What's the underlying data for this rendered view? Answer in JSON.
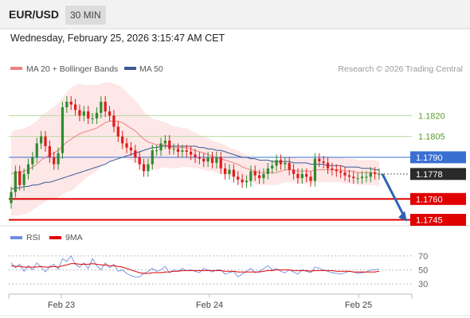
{
  "header": {
    "pair": "EUR/USD",
    "timeframe": "30 MIN",
    "datetime": "Wednesday, February 25, 2026 3:15:47 AM CET"
  },
  "legend": {
    "ma20_bb": "MA 20 + Bollinger Bands",
    "ma50": "MA 50",
    "credit": "Research © 2026 Trading Central"
  },
  "rsi_legend": {
    "rsi": "RSI",
    "ma9": "9MA"
  },
  "colors": {
    "green_level": "#b7db9a",
    "green_label": "#5a9e2f",
    "blue_level": "#3a6fd2",
    "red_level": "#e00000",
    "candle_up": "#2e8b2e",
    "candle_down": "#e11b1b",
    "ma20": "#f08080",
    "ma50": "#3a5a94",
    "band_fill": "#fde3e3",
    "rsi": "#6e8fe0",
    "rsi_ma": "#e00000"
  },
  "chart_data": {
    "type": "candlestick",
    "symbol": "EUR/USD",
    "interval": "30 MIN",
    "x_ticks": [
      "Feb 23",
      "Feb 24",
      "Feb 25"
    ],
    "levels": [
      {
        "price": 1.182,
        "label": "1.1820",
        "kind": "resistance",
        "color": "green"
      },
      {
        "price": 1.1805,
        "label": "1.1805",
        "kind": "resistance",
        "color": "green"
      },
      {
        "price": 1.179,
        "label": "1.1790",
        "kind": "pivot",
        "color": "blue"
      },
      {
        "price": 1.176,
        "label": "1.1760",
        "kind": "support",
        "color": "red"
      },
      {
        "price": 1.1745,
        "label": "1.1745",
        "kind": "support",
        "color": "red"
      }
    ],
    "current_price": {
      "price": 1.1778,
      "label": "1.1778"
    },
    "projection": {
      "from": 1.1778,
      "to": 1.1745,
      "direction": "down"
    },
    "close_series": [
      1.1765,
      1.178,
      1.177,
      1.1778,
      1.1785,
      1.179,
      1.18,
      1.1805,
      1.1798,
      1.179,
      1.1785,
      1.1793,
      1.1826,
      1.183,
      1.1828,
      1.1824,
      1.182,
      1.1823,
      1.1818,
      1.1818,
      1.1822,
      1.183,
      1.1823,
      1.182,
      1.1812,
      1.1805,
      1.18,
      1.1797,
      1.1795,
      1.179,
      1.1785,
      1.178,
      1.1785,
      1.1795,
      1.1795,
      1.18,
      1.1802,
      1.1796,
      1.1796,
      1.1794,
      1.1795,
      1.1794,
      1.1792,
      1.179,
      1.1789,
      1.1787,
      1.179,
      1.1786,
      1.179,
      1.1782,
      1.1778,
      1.1781,
      1.1776,
      1.1774,
      1.1772,
      1.1773,
      1.178,
      1.1777,
      1.1775,
      1.1778,
      1.1782,
      1.1784,
      1.1788,
      1.1785,
      1.1786,
      1.1781,
      1.1778,
      1.1775,
      1.1778,
      1.1776,
      1.1773,
      1.1789,
      1.1787,
      1.1786,
      1.1782,
      1.1781,
      1.178,
      1.1779,
      1.1777,
      1.1776,
      1.1775,
      1.1775,
      1.1776,
      1.1776,
      1.1779,
      1.1778,
      1.1778
    ],
    "ma20": [
      1.1778,
      1.1779,
      1.1779,
      1.178,
      1.1781,
      1.1783,
      1.1785,
      1.1788,
      1.179,
      1.1792,
      1.1793,
      1.1795,
      1.1798,
      1.1801,
      1.1803,
      1.1805,
      1.1807,
      1.1808,
      1.1809,
      1.181,
      1.1811,
      1.1813,
      1.1815,
      1.1816,
      1.1816,
      1.1816,
      1.1815,
      1.1813,
      1.1811,
      1.1809,
      1.1806,
      1.1803,
      1.1801,
      1.18,
      1.1799,
      1.1799,
      1.1799,
      1.1798,
      1.1797,
      1.1797,
      1.1797,
      1.1797,
      1.1796,
      1.1795,
      1.1794,
      1.1793,
      1.1792,
      1.1791,
      1.179,
      1.1789,
      1.1788,
      1.1787,
      1.1786,
      1.1785,
      1.1783,
      1.1782,
      1.1781,
      1.178,
      1.1779,
      1.1779,
      1.1779,
      1.1779,
      1.1779,
      1.178,
      1.1781,
      1.1781,
      1.1781,
      1.178,
      1.178,
      1.178,
      1.178,
      1.1781,
      1.1781,
      1.1781,
      1.1781,
      1.1781,
      1.1781,
      1.1781,
      1.178,
      1.178,
      1.178,
      1.1779,
      1.1779,
      1.1779,
      1.1779,
      1.1779,
      1.1778
    ],
    "ma50": [
      1.1767,
      1.1768,
      1.1768,
      1.1769,
      1.1769,
      1.177,
      1.177,
      1.1771,
      1.1772,
      1.1772,
      1.1773,
      1.1774,
      1.1775,
      1.1776,
      1.1777,
      1.1778,
      1.1779,
      1.178,
      1.1781,
      1.1782,
      1.1783,
      1.1784,
      1.1785,
      1.1787,
      1.1788,
      1.1789,
      1.179,
      1.1791,
      1.1792,
      1.1793,
      1.1794,
      1.1795,
      1.1796,
      1.1797,
      1.1797,
      1.1798,
      1.1798,
      1.1798,
      1.1798,
      1.1798,
      1.1798,
      1.1798,
      1.1798,
      1.1798,
      1.1797,
      1.1797,
      1.1796,
      1.1796,
      1.1795,
      1.1795,
      1.1794,
      1.1793,
      1.1792,
      1.1791,
      1.179,
      1.179,
      1.1789,
      1.1789,
      1.1788,
      1.1788,
      1.1788,
      1.1787,
      1.1787,
      1.1787,
      1.1787,
      1.1787,
      1.1786,
      1.1786,
      1.1786,
      1.1786,
      1.1785,
      1.1785,
      1.1785,
      1.1785,
      1.1784,
      1.1784,
      1.1784,
      1.1784,
      1.1783,
      1.1783,
      1.1783,
      1.1783,
      1.1782,
      1.1782,
      1.1782,
      1.1781,
      1.1781
    ],
    "band_width": [
      0.003,
      0.0031,
      0.0031,
      0.0031,
      0.0031,
      0.0031,
      0.0031,
      0.0032,
      0.0032,
      0.0032,
      0.0033,
      0.0034,
      0.0035,
      0.0036,
      0.0037,
      0.0037,
      0.0036,
      0.0034,
      0.0033,
      0.0032,
      0.0031,
      0.003,
      0.0029,
      0.0028,
      0.0027,
      0.0026,
      0.0025,
      0.0024,
      0.0023,
      0.0022,
      0.0021,
      0.002,
      0.0019,
      0.0018,
      0.0018,
      0.0017,
      0.0016,
      0.0016,
      0.0015,
      0.0015,
      0.0014,
      0.0014,
      0.0013,
      0.0013,
      0.0012,
      0.0012,
      0.0012,
      0.0011,
      0.0011,
      0.0011,
      0.0011,
      0.001,
      0.001,
      0.001,
      0.001,
      0.001,
      0.0009,
      0.0009,
      0.0009,
      0.0009,
      0.0009,
      0.0009,
      0.0009,
      0.0009,
      0.0009,
      0.0009,
      0.0009,
      0.0009,
      0.0009,
      0.0009,
      0.0009,
      0.0009,
      0.0009,
      0.0009,
      0.0009,
      0.0009,
      0.0009,
      0.0009,
      0.0009,
      0.0009,
      0.0009,
      0.0009,
      0.0009,
      0.0009,
      0.0009,
      0.0009,
      0.0009
    ],
    "price_range": [
      1.1743,
      1.1846
    ],
    "rsi": {
      "levels": [
        70,
        50,
        30
      ],
      "values": [
        60,
        53,
        58,
        48,
        56,
        50,
        60,
        54,
        47,
        55,
        58,
        51,
        66,
        62,
        70,
        58,
        54,
        60,
        52,
        66,
        56,
        50,
        60,
        53,
        58,
        48,
        50,
        45,
        42,
        40,
        40,
        45,
        48,
        52,
        48,
        50,
        55,
        46,
        50,
        48,
        52,
        49,
        50,
        48,
        46,
        52,
        50,
        47,
        50,
        50,
        44,
        46,
        48,
        40,
        44,
        48,
        52,
        46,
        48,
        52,
        56,
        50,
        52,
        48,
        46,
        50,
        47,
        44,
        50,
        48,
        46,
        54,
        52,
        50,
        48,
        46,
        45,
        44,
        46,
        48,
        47,
        45,
        46,
        47,
        50,
        50,
        51
      ],
      "ma9": [
        56,
        55,
        55,
        54,
        54,
        54,
        54,
        55,
        54,
        54,
        55,
        54,
        56,
        57,
        59,
        59,
        58,
        58,
        58,
        59,
        58,
        57,
        57,
        56,
        56,
        55,
        54,
        52,
        50,
        48,
        46,
        45,
        45,
        46,
        46,
        46,
        47,
        47,
        48,
        48,
        49,
        49,
        49,
        49,
        49,
        49,
        49,
        49,
        49,
        49,
        48,
        48,
        48,
        47,
        47,
        47,
        47,
        47,
        47,
        48,
        49,
        49,
        50,
        50,
        50,
        50,
        49,
        49,
        49,
        49,
        48,
        49,
        49,
        49,
        49,
        49,
        48,
        48,
        48,
        48,
        47,
        47,
        47,
        47,
        47,
        47,
        48
      ]
    }
  }
}
